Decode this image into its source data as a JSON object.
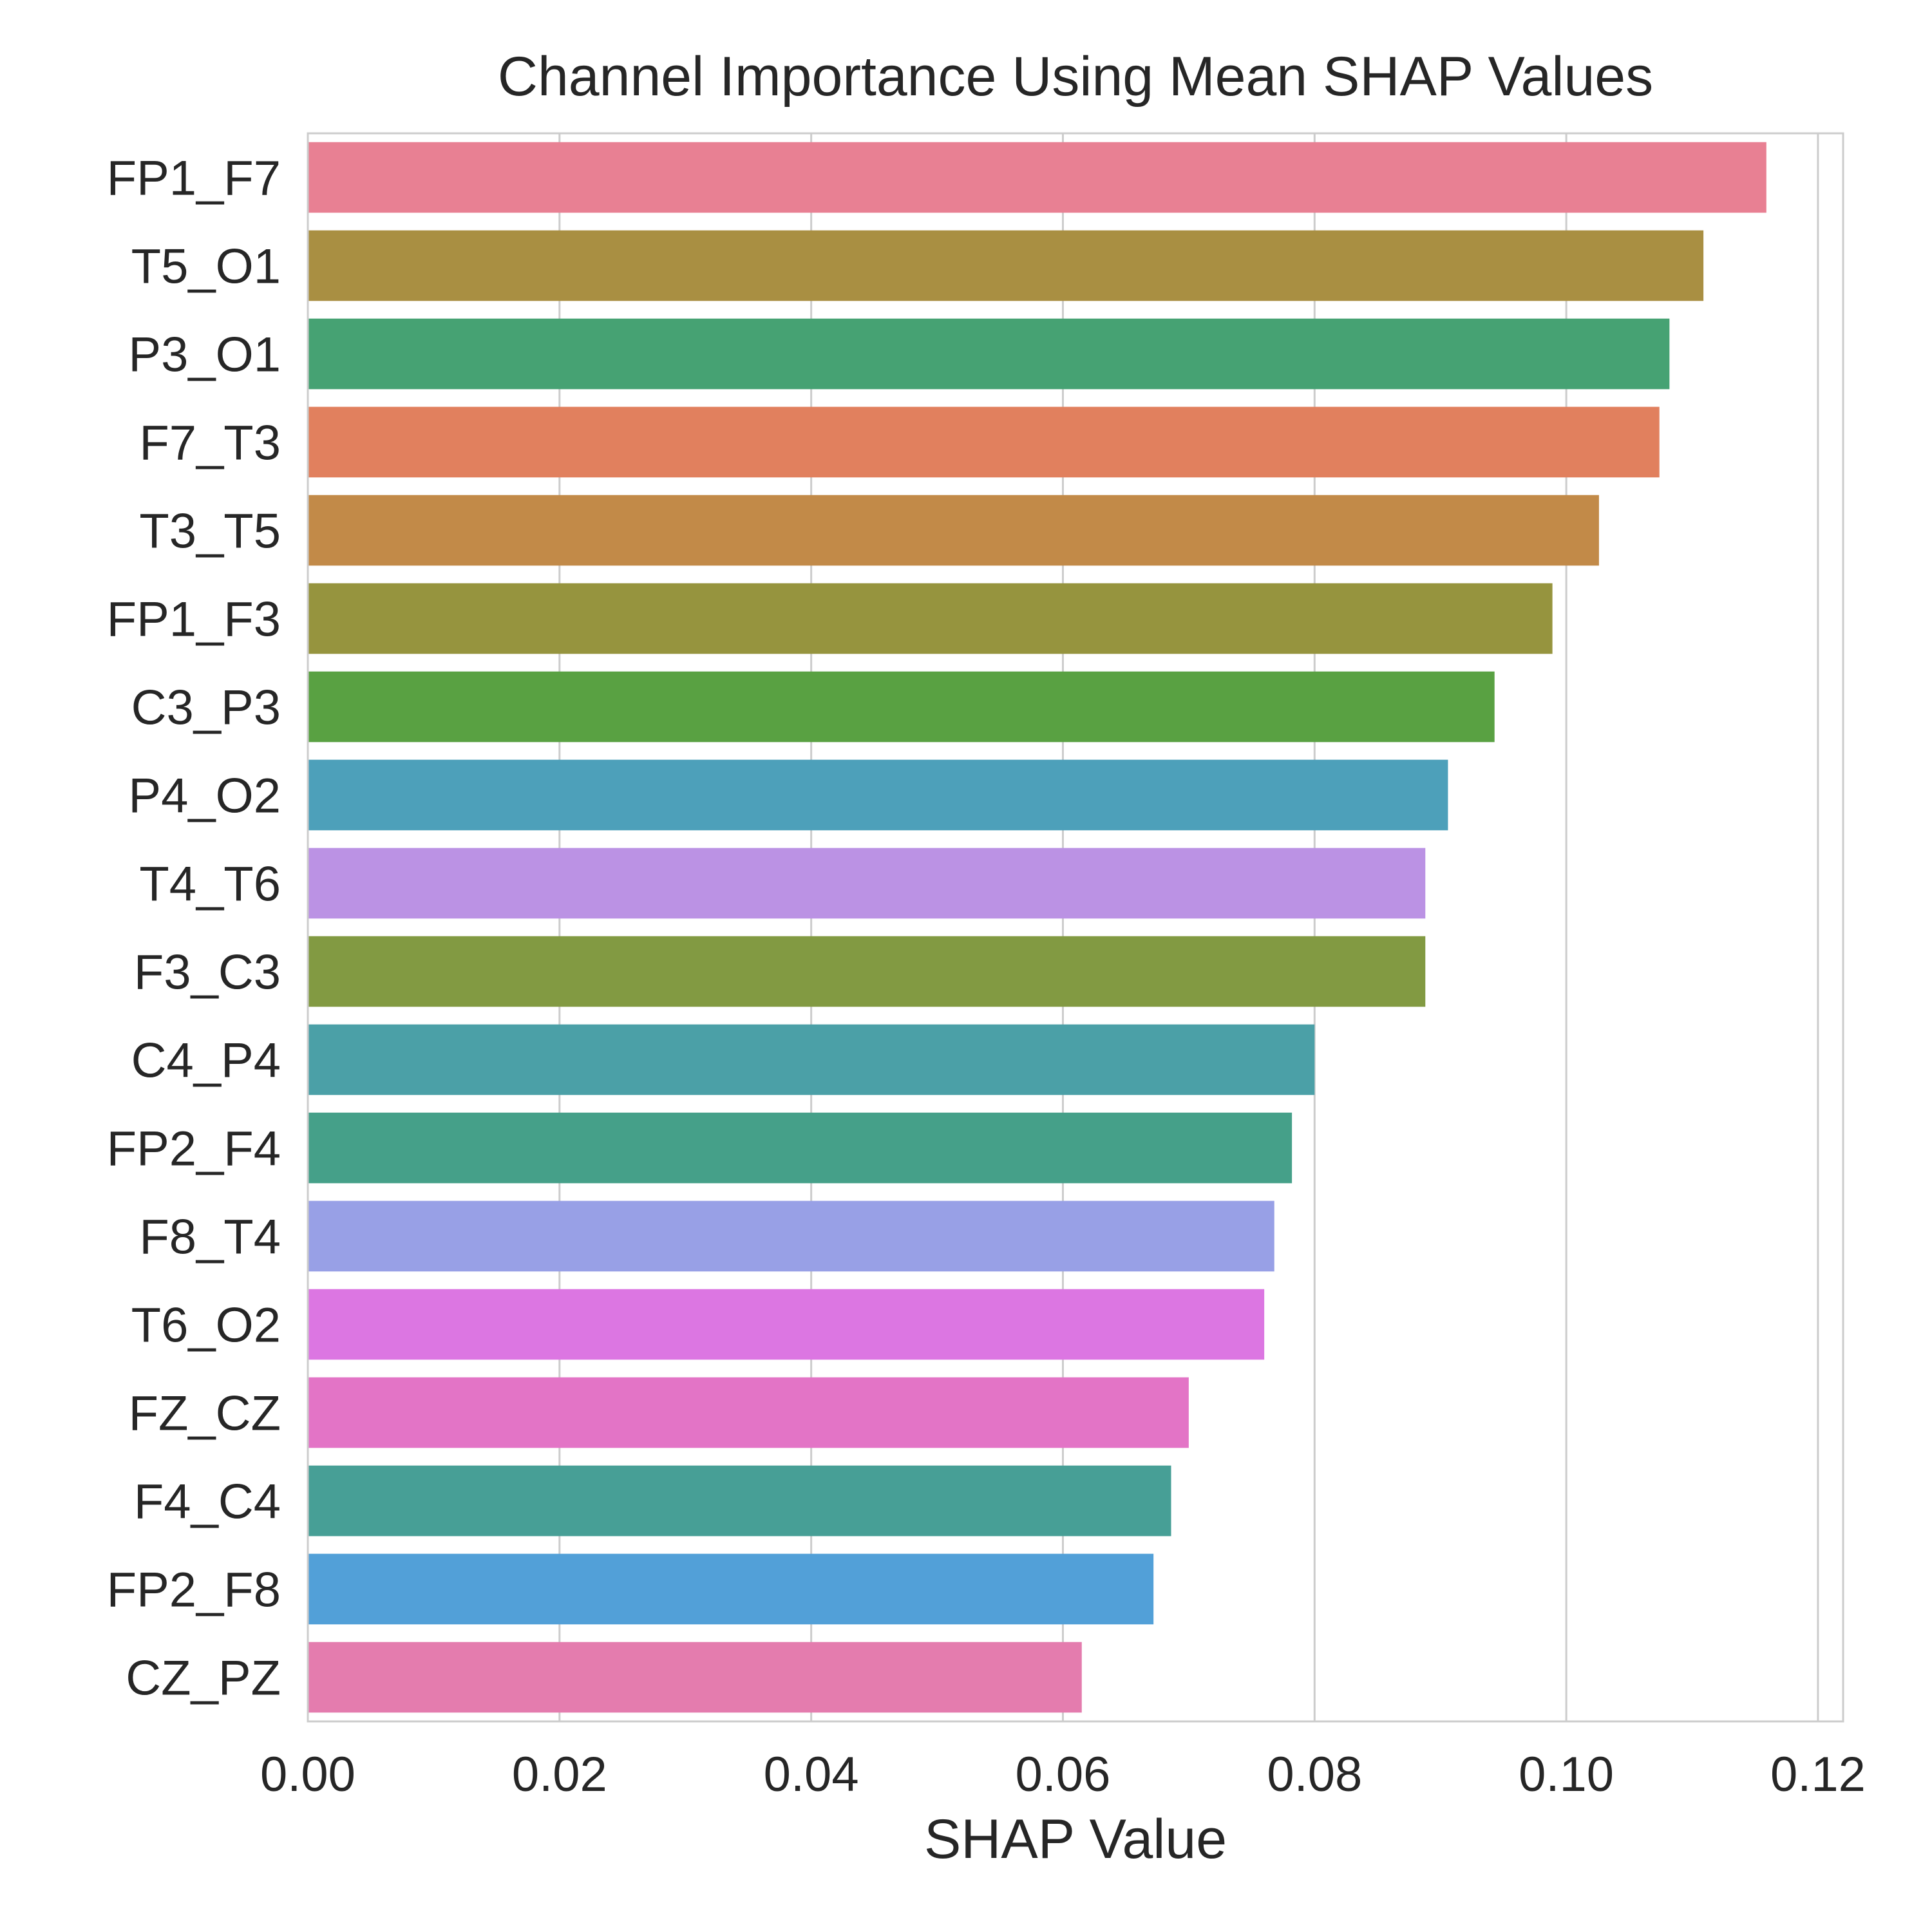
{
  "chart_data": {
    "type": "bar",
    "orientation": "horizontal",
    "title": "Channel Importance Using Mean SHAP Values",
    "xlabel": "SHAP Value",
    "ylabel": "",
    "xlim": [
      0,
      0.122
    ],
    "xticks": [
      0.0,
      0.02,
      0.04,
      0.06,
      0.08,
      0.1,
      0.12
    ],
    "xtick_labels": [
      "0.00",
      "0.02",
      "0.04",
      "0.06",
      "0.08",
      "0.10",
      "0.12"
    ],
    "grid": true,
    "categories": [
      "FP1_F7",
      "T5_O1",
      "P3_O1",
      "F7_T3",
      "T3_T5",
      "FP1_F3",
      "C3_P3",
      "P4_O2",
      "T4_T6",
      "F3_C3",
      "C4_P4",
      "FP2_F4",
      "F8_T4",
      "T6_O2",
      "FZ_CZ",
      "F4_C4",
      "FP2_F8",
      "CZ_PZ"
    ],
    "values": [
      0.1159,
      0.1109,
      0.1082,
      0.1074,
      0.1026,
      0.0989,
      0.0943,
      0.0906,
      0.0888,
      0.0888,
      0.08,
      0.0782,
      0.0768,
      0.076,
      0.07,
      0.0686,
      0.0672,
      0.0615
    ],
    "colors": [
      "#e88093",
      "#a98f42",
      "#46a273",
      "#e1805e",
      "#c28a48",
      "#96943e",
      "#59a142",
      "#4da0ba",
      "#bb92e4",
      "#829a42",
      "#4ba0a7",
      "#45a089",
      "#98a0e6",
      "#dc76e2",
      "#e374c6",
      "#479f96",
      "#52a0d8",
      "#e47cae"
    ]
  }
}
